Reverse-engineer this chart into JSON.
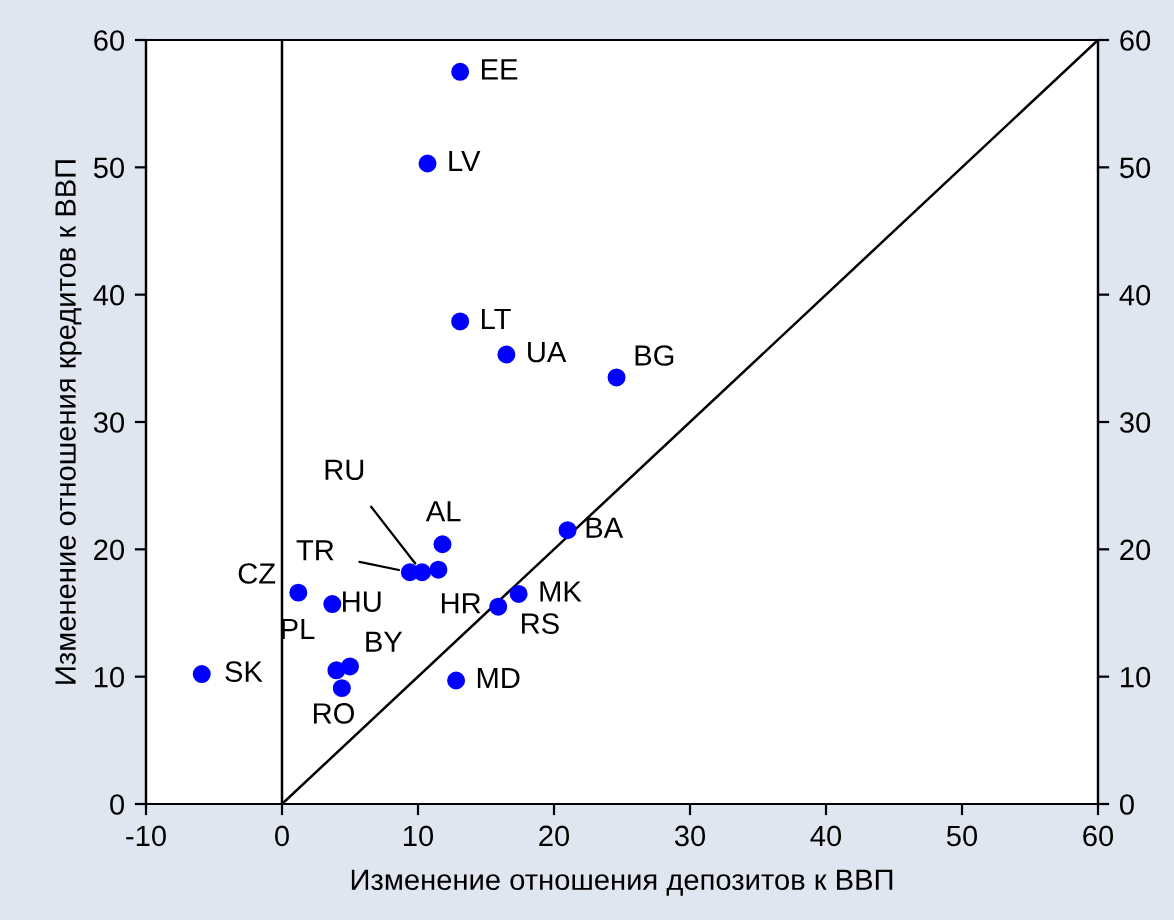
{
  "chart_data": {
    "type": "scatter",
    "xlabel": "Изменение отношения депозитов к ВВП",
    "ylabel": "Изменение отношения кредитов к ВВП",
    "xlim": [
      -10,
      60
    ],
    "xticks": [
      -10,
      0,
      10,
      20,
      30,
      40,
      50,
      60
    ],
    "ylim": [
      0,
      60
    ],
    "yticks": [
      0,
      10,
      20,
      30,
      40,
      50,
      60
    ],
    "y2lim": [
      0,
      60
    ],
    "y2ticks": [
      0,
      10,
      20,
      30,
      40,
      50,
      60
    ],
    "grid": false,
    "legend": false,
    "marker": "circle",
    "series": [
      {
        "color": "#0000ff",
        "x": [
          13.1,
          10.7,
          13.1,
          16.5,
          24.6,
          21.0,
          11.8,
          10.3,
          9.4,
          11.5,
          17.4,
          15.9,
          1.2,
          3.7,
          -5.9,
          4.0,
          5.0,
          4.4,
          12.8
        ],
        "values": [
          57.5,
          50.3,
          37.9,
          35.3,
          33.5,
          21.5,
          20.4,
          18.2,
          18.2,
          18.4,
          16.5,
          15.5,
          16.6,
          15.7,
          10.2,
          10.5,
          10.8,
          9.1,
          9.7
        ]
      },
      {
        "type": "line",
        "color": "#000000",
        "x": [
          0,
          60
        ],
        "values": [
          0,
          60
        ],
        "line_style": "solid",
        "marker": "none"
      }
    ],
    "ref_lines": [
      {
        "axis": "x",
        "value": 0,
        "color": "#000000"
      }
    ],
    "annotations": [
      {
        "text": "EE",
        "x": 13.1,
        "y": 57.5
      },
      {
        "text": "LV",
        "x": 10.7,
        "y": 50.3
      },
      {
        "text": "LT",
        "x": 13.1,
        "y": 37.9
      },
      {
        "text": "UA",
        "x": 16.5,
        "y": 35.3
      },
      {
        "text": "BG",
        "x": 24.6,
        "y": 33.5
      },
      {
        "text": "BA",
        "x": 21.0,
        "y": 21.5
      },
      {
        "text": "AL",
        "x": 11.8,
        "y": 20.4
      },
      {
        "text": "RU",
        "x": 10.3,
        "y": 18.2
      },
      {
        "text": "TR",
        "x": 9.4,
        "y": 18.2
      },
      {
        "text": "HR",
        "x": 11.5,
        "y": 18.4
      },
      {
        "text": "MK",
        "x": 17.4,
        "y": 16.5
      },
      {
        "text": "RS",
        "x": 15.9,
        "y": 15.5
      },
      {
        "text": "CZ",
        "x": 1.2,
        "y": 16.6
      },
      {
        "text": "HU",
        "x": 3.7,
        "y": 15.7
      },
      {
        "text": "SK",
        "x": -5.9,
        "y": 10.2
      },
      {
        "text": "PL",
        "x": 4.0,
        "y": 10.5
      },
      {
        "text": "BY",
        "x": 5.0,
        "y": 10.8
      },
      {
        "text": "RO",
        "x": 4.4,
        "y": 9.1
      },
      {
        "text": "MD",
        "x": 12.8,
        "y": 9.7
      }
    ]
  }
}
